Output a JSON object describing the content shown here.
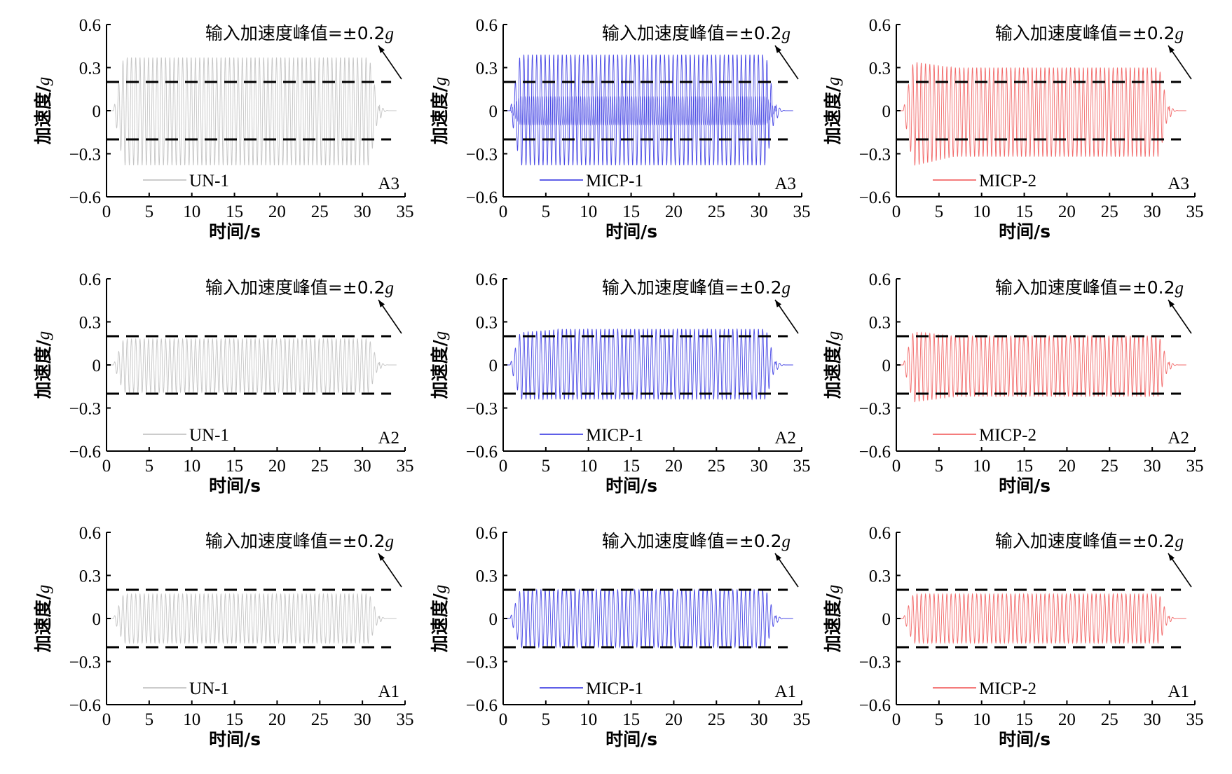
{
  "chart_data": {
    "type": "line",
    "layout": "3x3 grid of acceleration time histories",
    "shared": {
      "xlabel": "时间/s",
      "ylabel_prefix": "加速度/",
      "ylabel_unit": "g",
      "xlim": [
        0,
        35
      ],
      "ylim": [
        -0.6,
        0.6
      ],
      "xticks": [
        "0",
        "5",
        "10",
        "15",
        "20",
        "25",
        "30",
        "35"
      ],
      "yticks": [
        "0.6",
        "0.3",
        "0",
        "−0.3",
        "−0.6"
      ],
      "annotation_prefix": "输入加速度峰值=±0.2",
      "annotation_unit": "g",
      "reference_lines": [
        0.2,
        -0.2
      ],
      "input_frequency_hz": 2,
      "shaking_start_s": 0.8,
      "shaking_end_s": 32.0
    },
    "panels": [
      {
        "series": "UN-1",
        "location": "A3",
        "color": "#bbbbbb",
        "peak_pos": 0.37,
        "peak_neg": -0.38,
        "offset": 0.0,
        "start_peak_pos": 0.37,
        "start_peak_neg": -0.38
      },
      {
        "series": "MICP-1",
        "location": "A3",
        "color": "#2a2ae0",
        "peak_pos": 0.39,
        "peak_neg": -0.38,
        "offset": 0.0,
        "start_peak_pos": 0.39,
        "start_peak_neg": -0.38,
        "inner_peak": 0.1
      },
      {
        "series": "MICP-2",
        "location": "A3",
        "color": "#f05050",
        "peak_pos": 0.3,
        "peak_neg": -0.32,
        "offset": 0.0,
        "start_peak_pos": 0.35,
        "start_peak_neg": -0.4
      },
      {
        "series": "UN-1",
        "location": "A2",
        "color": "#bbbbbb",
        "peak_pos": 0.18,
        "peak_neg": -0.19,
        "offset": 0.0,
        "start_peak_pos": 0.18,
        "start_peak_neg": -0.19
      },
      {
        "series": "MICP-1",
        "location": "A2",
        "color": "#2a2ae0",
        "peak_pos": 0.25,
        "peak_neg": -0.24,
        "offset": 0.0,
        "start_peak_pos": 0.22,
        "start_peak_neg": -0.24
      },
      {
        "series": "MICP-2",
        "location": "A2",
        "color": "#f05050",
        "peak_pos": 0.2,
        "peak_neg": -0.22,
        "offset": 0.0,
        "start_peak_pos": 0.24,
        "start_peak_neg": -0.27
      },
      {
        "series": "UN-1",
        "location": "A1",
        "color": "#bbbbbb",
        "peak_pos": 0.17,
        "peak_neg": -0.17,
        "offset": 0.0,
        "start_peak_pos": 0.17,
        "start_peak_neg": -0.17
      },
      {
        "series": "MICP-1",
        "location": "A1",
        "color": "#2a2ae0",
        "peak_pos": 0.2,
        "peak_neg": -0.2,
        "offset": 0.0,
        "start_peak_pos": 0.2,
        "start_peak_neg": -0.2
      },
      {
        "series": "MICP-2",
        "location": "A1",
        "color": "#f05050",
        "peak_pos": 0.17,
        "peak_neg": -0.17,
        "offset": 0.0,
        "start_peak_pos": 0.17,
        "start_peak_neg": -0.17
      }
    ]
  }
}
